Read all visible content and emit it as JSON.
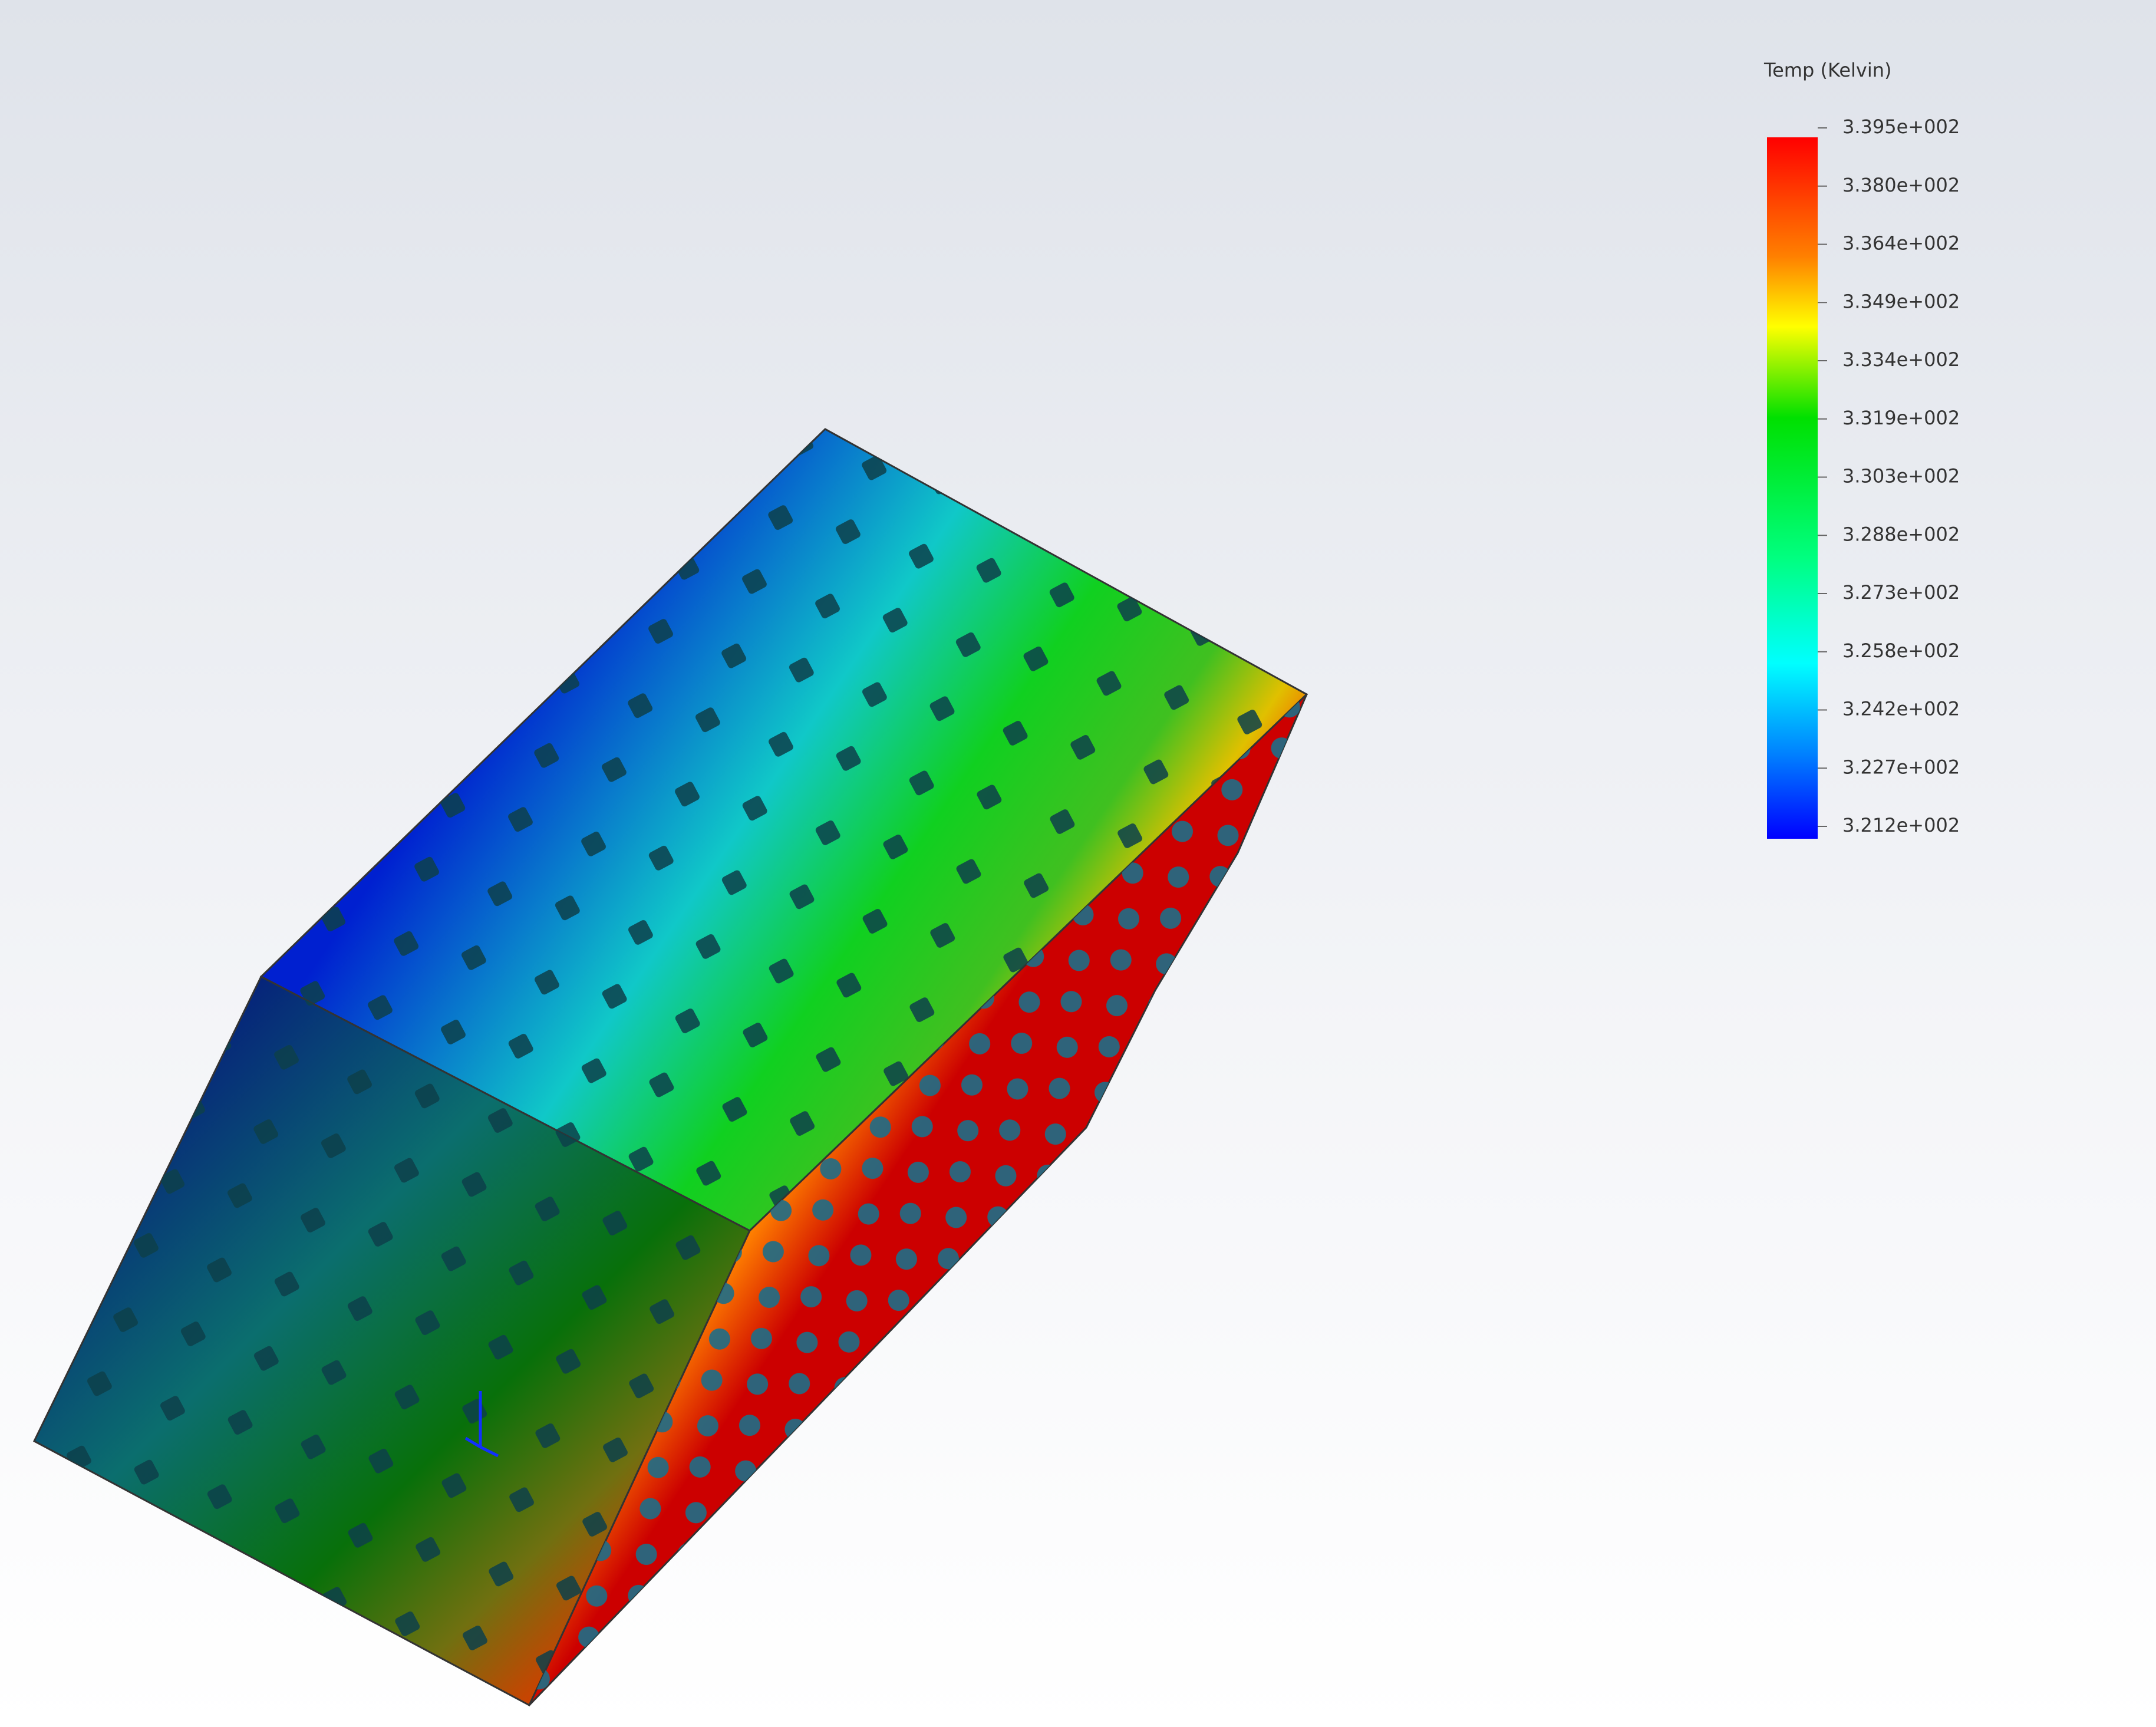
{
  "legend": {
    "title": "Temp (Kelvin)",
    "labels": [
      "3.395e+002",
      "3.380e+002",
      "3.364e+002",
      "3.349e+002",
      "3.334e+002",
      "3.319e+002",
      "3.303e+002",
      "3.288e+002",
      "3.273e+002",
      "3.258e+002",
      "3.242e+002",
      "3.227e+002",
      "3.212e+002"
    ]
  }
}
